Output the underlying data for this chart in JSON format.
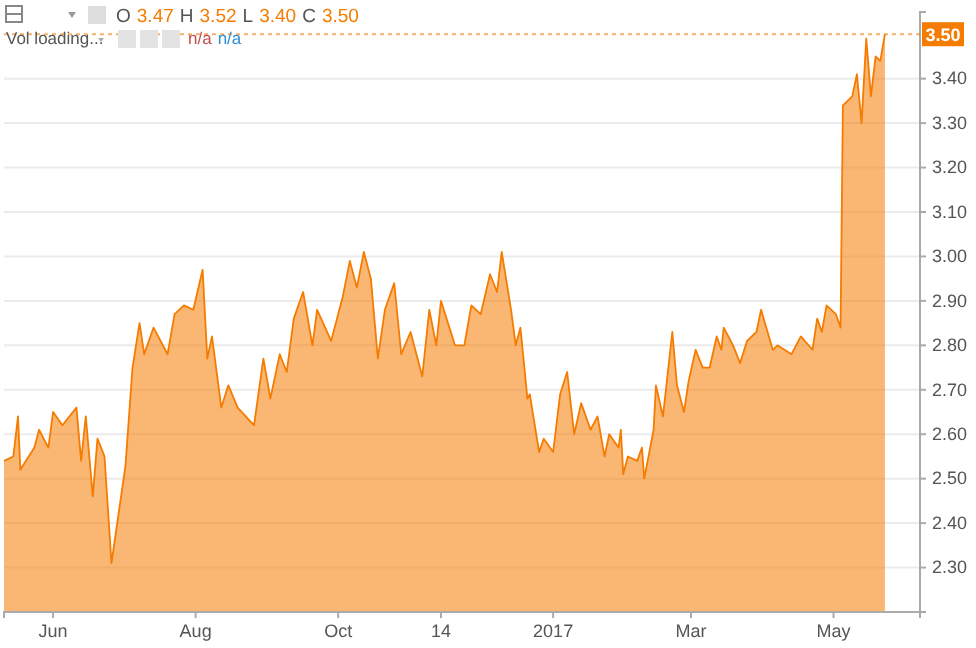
{
  "chart_data": {
    "type": "area",
    "annotations": [
      "O 3.47 H 3.52 L 3.40 C 3.50",
      "Vol loading...",
      "n/a n/a"
    ],
    "x": [
      "2016-05-11",
      "2016-05-15",
      "2016-05-17",
      "2016-05-18",
      "2016-05-24",
      "2016-05-26",
      "2016-05-30",
      "2016-06-01",
      "2016-06-05",
      "2016-06-11",
      "2016-06-13",
      "2016-06-15",
      "2016-06-18",
      "2016-06-20",
      "2016-06-23",
      "2016-06-26",
      "2016-07-02",
      "2016-07-05",
      "2016-07-08",
      "2016-07-10",
      "2016-07-14",
      "2016-07-20",
      "2016-07-23",
      "2016-07-27",
      "2016-07-31",
      "2016-08-04",
      "2016-08-06",
      "2016-08-08",
      "2016-08-12",
      "2016-08-15",
      "2016-08-19",
      "2016-08-26",
      "2016-08-30",
      "2016-09-02",
      "2016-09-06",
      "2016-09-09",
      "2016-09-12",
      "2016-09-16",
      "2016-09-20",
      "2016-09-22",
      "2016-09-28",
      "2016-10-03",
      "2016-10-06",
      "2016-10-09",
      "2016-10-12",
      "2016-10-15",
      "2016-10-18",
      "2016-10-21",
      "2016-10-25",
      "2016-10-28",
      "2016-11-01",
      "2016-11-06",
      "2016-11-09",
      "2016-11-12",
      "2016-11-14",
      "2016-11-20",
      "2016-11-24",
      "2016-11-27",
      "2016-12-01",
      "2016-12-05",
      "2016-12-08",
      "2016-12-10",
      "2016-12-14",
      "2016-12-16",
      "2016-12-18",
      "2016-12-21",
      "2016-12-22",
      "2016-12-26",
      "2016-12-28",
      "2017-01-01",
      "2017-01-04",
      "2017-01-07",
      "2017-01-10",
      "2017-01-13",
      "2017-01-17",
      "2017-01-20",
      "2017-01-23",
      "2017-01-25",
      "2017-01-29",
      "2017-01-30",
      "2017-01-31",
      "2017-02-02",
      "2017-02-06",
      "2017-02-08",
      "2017-02-09",
      "2017-02-13",
      "2017-02-14",
      "2017-02-17",
      "2017-02-21",
      "2017-02-23",
      "2017-02-26",
      "2017-02-28",
      "2017-03-03",
      "2017-03-06",
      "2017-03-09",
      "2017-03-12",
      "2017-03-14",
      "2017-03-15",
      "2017-03-19",
      "2017-03-22",
      "2017-03-25",
      "2017-03-29",
      "2017-03-31",
      "2017-04-05",
      "2017-04-07",
      "2017-04-13",
      "2017-04-17",
      "2017-04-22",
      "2017-04-24",
      "2017-04-26",
      "2017-04-28",
      "2017-05-02",
      "2017-05-04",
      "2017-05-05",
      "2017-05-09",
      "2017-05-11",
      "2017-05-13",
      "2017-05-15",
      "2017-05-17",
      "2017-05-19",
      "2017-05-21",
      "2017-05-23"
    ],
    "series": [
      {
        "color": "#f57c00",
        "values": [
          2.54,
          2.55,
          2.64,
          2.52,
          2.57,
          2.61,
          2.57,
          2.65,
          2.62,
          2.66,
          2.54,
          2.64,
          2.46,
          2.59,
          2.55,
          2.31,
          2.53,
          2.75,
          2.85,
          2.78,
          2.84,
          2.78,
          2.87,
          2.89,
          2.88,
          2.97,
          2.77,
          2.82,
          2.66,
          2.71,
          2.66,
          2.62,
          2.77,
          2.68,
          2.78,
          2.74,
          2.86,
          2.92,
          2.8,
          2.88,
          2.81,
          2.91,
          2.99,
          2.93,
          3.01,
          2.95,
          2.77,
          2.88,
          2.94,
          2.78,
          2.83,
          2.73,
          2.88,
          2.8,
          2.9,
          2.8,
          2.8,
          2.89,
          2.87,
          2.96,
          2.92,
          3.01,
          2.88,
          2.8,
          2.84,
          2.68,
          2.69,
          2.56,
          2.59,
          2.56,
          2.69,
          2.74,
          2.6,
          2.67,
          2.61,
          2.64,
          2.55,
          2.6,
          2.57,
          2.61,
          2.51,
          2.55,
          2.54,
          2.57,
          2.5,
          2.61,
          2.71,
          2.64,
          2.83,
          2.71,
          2.65,
          2.72,
          2.79,
          2.75,
          2.75,
          2.82,
          2.79,
          2.84,
          2.8,
          2.76,
          2.81,
          2.83,
          2.88,
          2.79,
          2.8,
          2.78,
          2.82,
          2.79,
          2.86,
          2.83,
          2.89,
          2.87,
          2.84,
          3.34,
          3.36,
          3.41,
          3.3,
          3.49,
          3.36,
          3.45,
          3.44,
          3.5
        ]
      }
    ],
    "xlim": [
      "2016-05-11",
      "2017-06-07"
    ],
    "xticks": [
      {
        "value": "2016-06-01",
        "label": "Jun"
      },
      {
        "value": "2016-08-01",
        "label": "Aug"
      },
      {
        "value": "2016-10-01",
        "label": "Oct"
      },
      {
        "value": "2016-11-14",
        "label": "14"
      },
      {
        "value": "2017-01-01",
        "label": "2017"
      },
      {
        "value": "2017-03-01",
        "label": "Mar"
      },
      {
        "value": "2017-05-01",
        "label": "May"
      }
    ],
    "ylim": [
      2.2,
      3.55
    ],
    "yticks": [
      {
        "value": 2.3,
        "label": "2.30"
      },
      {
        "value": 2.4,
        "label": "2.40"
      },
      {
        "value": 2.5,
        "label": "2.50"
      },
      {
        "value": 2.6,
        "label": "2.60"
      },
      {
        "value": 2.7,
        "label": "2.70"
      },
      {
        "value": 2.8,
        "label": "2.80"
      },
      {
        "value": 2.9,
        "label": "2.90"
      },
      {
        "value": 3.0,
        "label": "3.00"
      },
      {
        "value": 3.1,
        "label": "3.10"
      },
      {
        "value": 3.2,
        "label": "3.20"
      },
      {
        "value": 3.3,
        "label": "3.30"
      },
      {
        "value": 3.4,
        "label": "3.40"
      }
    ],
    "ref_lines": [
      {
        "axis": "y",
        "value": 3.5,
        "label": "3.50",
        "color": "#f57c00",
        "line_style": "dotted"
      }
    ],
    "grid": "y"
  }
}
